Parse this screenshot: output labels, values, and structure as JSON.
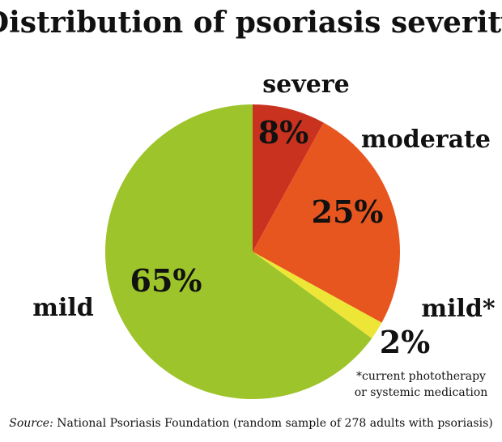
{
  "chart_data": {
    "type": "pie",
    "title": "Distribution of psoriasis severity",
    "slices": [
      {
        "label": "severe",
        "value": 8,
        "value_label": "8%",
        "color": "#c8321f"
      },
      {
        "label": "moderate",
        "value": 25,
        "value_label": "25%",
        "color": "#e8561f"
      },
      {
        "label": "mild*",
        "value": 2,
        "value_label": "2%",
        "color": "#ede636"
      },
      {
        "label": "mild",
        "value": 65,
        "value_label": "65%",
        "color": "#9dc42a"
      }
    ],
    "start_position": "12 o'clock",
    "direction": "clockwise"
  },
  "footnote": {
    "line1": "*current phototherapy",
    "line2": "or systemic medication"
  },
  "source": {
    "prefix": "Source:",
    "text": " National Psoriasis Foundation (random sample of 278 adults with psoriasis)"
  }
}
